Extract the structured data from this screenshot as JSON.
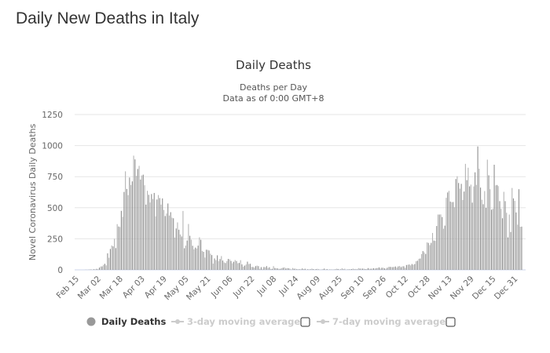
{
  "page": {
    "title": "Daily New Deaths in Italy"
  },
  "chart_data": {
    "type": "bar",
    "title": "Daily Deaths",
    "subtitle_lines": [
      "Deaths per Day",
      "Data as of 0:00 GMT+8"
    ],
    "xlabel": "",
    "ylabel": "Novel Coronavirus Daily Deaths",
    "ylim": [
      0,
      1250
    ],
    "yticks": [
      "0",
      "250",
      "500",
      "750",
      "1000",
      "1250"
    ],
    "ytick_values": [
      0,
      250,
      500,
      750,
      1000,
      1250
    ],
    "xticks": [
      "Feb 15",
      "Mar 02",
      "Mar 18",
      "Apr 03",
      "Apr 19",
      "May 05",
      "May 21",
      "Jun 06",
      "Jun 22",
      "Jul 08",
      "Jul 24",
      "Aug 09",
      "Aug 25",
      "Sep 10",
      "Sep 26",
      "Oct 12",
      "Oct 28",
      "Nov 13",
      "Nov 29",
      "Dec 15",
      "Dec 31"
    ],
    "xtick_interval_days": 16,
    "grid": true,
    "start_date": "Feb 15",
    "series_color": "#a0a0a0",
    "values_by_month": [
      [
        0,
        0,
        0,
        0,
        0,
        0,
        1,
        1,
        1,
        4,
        3,
        2,
        5,
        4,
        8
      ],
      [
        5,
        18,
        27,
        28,
        41,
        49,
        36,
        133,
        97,
        168,
        196,
        189,
        250,
        175,
        368,
        349,
        345,
        475,
        427,
        627,
        793,
        651,
        601,
        743,
        683,
        712,
        919,
        889,
        756,
        812,
        837
      ],
      [
        727,
        760,
        766,
        681,
        525,
        636,
        604,
        542,
        610,
        570,
        619,
        431,
        566,
        602,
        578,
        525,
        575,
        482,
        433,
        454,
        534,
        437,
        464,
        420,
        415,
        260,
        333,
        382,
        323,
        285
      ],
      [
        269,
        474,
        174,
        195,
        236,
        369,
        274,
        243,
        194,
        165,
        179,
        172,
        195,
        262,
        242,
        153,
        145,
        99,
        162,
        161,
        156,
        130,
        119,
        50,
        92,
        78,
        117,
        70,
        87,
        111,
        75
      ],
      [
        60,
        55,
        71,
        88,
        85,
        72,
        53,
        65,
        79,
        71,
        53,
        56,
        78,
        44,
        26,
        34,
        43,
        66,
        47,
        49,
        24,
        23,
        18,
        30,
        34,
        30,
        8,
        22,
        6,
        23
      ],
      [
        21,
        30,
        15,
        21,
        7,
        8,
        30,
        15,
        12,
        12,
        7,
        9,
        13,
        17,
        20,
        11,
        14,
        13,
        9,
        3,
        15,
        9,
        10,
        5,
        5,
        5,
        5,
        11,
        6,
        9,
        3
      ],
      [
        5,
        4,
        5,
        10,
        6,
        3,
        6,
        8,
        4,
        2,
        2,
        6,
        10,
        3,
        6,
        2,
        3,
        4,
        2,
        4,
        4,
        9,
        7,
        4,
        4,
        13,
        5,
        9,
        1,
        5,
        4
      ],
      [
        6,
        6,
        10,
        5,
        7,
        4,
        14,
        10,
        10,
        10,
        9,
        6,
        7,
        14,
        9,
        9,
        10,
        13,
        10,
        14,
        15,
        20,
        11,
        17,
        17,
        12,
        9,
        17,
        24,
        24
      ],
      [
        23,
        22,
        24,
        27,
        18,
        28,
        31,
        22,
        28,
        29,
        16,
        39,
        41,
        43,
        36,
        47,
        41,
        47,
        69,
        73,
        89,
        91,
        127,
        151,
        141,
        128,
        221,
        217,
        199,
        217,
        297
      ],
      [
        236,
        233,
        353,
        445,
        445,
        446,
        425,
        331,
        356,
        580,
        623,
        636,
        550,
        544,
        546,
        504,
        731,
        753,
        699,
        653,
        692,
        562,
        630,
        853,
        722,
        822,
        672,
        686,
        541,
        672
      ],
      [
        785,
        684,
        993,
        814,
        662,
        564,
        528,
        634,
        499,
        887,
        761,
        649,
        484,
        491,
        846,
        680,
        683,
        674,
        553,
        491,
        415,
        628,
        553,
        459,
        261,
        445,
        305,
        659,
        575,
        555,
        462
      ],
      [
        364,
        649,
        347,
        348
      ]
    ],
    "legend": {
      "placement": "bottom-center",
      "items": [
        {
          "label": "Daily Deaths",
          "active": true
        },
        {
          "label": "3-day moving average",
          "active": false
        },
        {
          "label": "7-day moving average",
          "active": false
        }
      ]
    }
  }
}
